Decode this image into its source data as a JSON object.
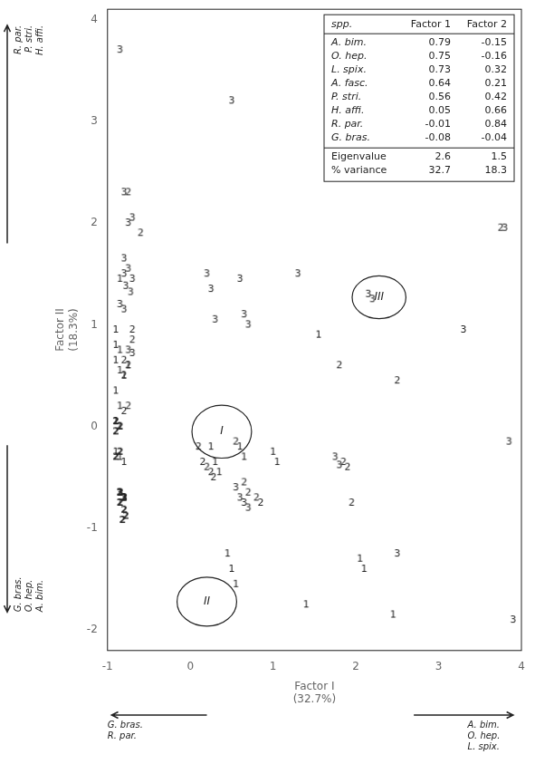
{
  "chart_data": {
    "type": "scatter",
    "xlabel": "Factor I\n(32.7%)",
    "ylabel": "Factor II\n(18.3%)",
    "xlim": [
      -1,
      4
    ],
    "ylim": [
      -2.2,
      4.1
    ],
    "xticks": [
      -1,
      0,
      1,
      2,
      3,
      4
    ],
    "yticks": [
      -2,
      -1,
      0,
      1,
      2,
      3,
      4
    ],
    "grid": false,
    "series": [
      {
        "name": "1",
        "marker": "text",
        "values": [
          [
            -0.85,
            1.45
          ],
          [
            -0.9,
            0.95
          ],
          [
            -0.9,
            0.8
          ],
          [
            -0.85,
            0.75
          ],
          [
            -0.9,
            0.65
          ],
          [
            -0.75,
            0.6
          ],
          [
            -0.85,
            0.55
          ],
          [
            -0.8,
            0.5
          ],
          [
            -0.9,
            0.35
          ],
          [
            -0.85,
            0.2
          ],
          [
            -0.9,
            0.05
          ],
          [
            -0.85,
            0.0
          ],
          [
            -0.9,
            -0.25
          ],
          [
            -0.85,
            -0.3
          ],
          [
            -0.8,
            -0.35
          ],
          [
            -0.85,
            -0.65
          ],
          [
            -0.8,
            -0.7
          ],
          [
            -0.85,
            -0.75
          ],
          [
            0.25,
            -0.2
          ],
          [
            0.3,
            -0.35
          ],
          [
            0.35,
            -0.45
          ],
          [
            0.6,
            -0.2
          ],
          [
            0.65,
            -0.3
          ],
          [
            1.0,
            -0.25
          ],
          [
            1.05,
            -0.35
          ],
          [
            1.55,
            0.9
          ],
          [
            0.45,
            -1.25
          ],
          [
            0.5,
            -1.4
          ],
          [
            0.55,
            -1.55
          ],
          [
            1.4,
            -1.75
          ],
          [
            2.05,
            -1.3
          ],
          [
            2.1,
            -1.4
          ],
          [
            2.45,
            -1.85
          ]
        ]
      },
      {
        "name": "2",
        "marker": "text",
        "values": [
          [
            -0.75,
            2.3
          ],
          [
            -0.6,
            1.9
          ],
          [
            -0.7,
            0.95
          ],
          [
            -0.7,
            0.85
          ],
          [
            -0.8,
            0.65
          ],
          [
            -0.75,
            0.6
          ],
          [
            -0.8,
            0.5
          ],
          [
            -0.75,
            0.2
          ],
          [
            -0.8,
            0.15
          ],
          [
            0.1,
            -0.2
          ],
          [
            0.15,
            -0.35
          ],
          [
            0.2,
            -0.4
          ],
          [
            0.25,
            -0.45
          ],
          [
            0.28,
            -0.5
          ],
          [
            0.55,
            -0.15
          ],
          [
            0.65,
            -0.55
          ],
          [
            0.7,
            -0.65
          ],
          [
            0.8,
            -0.7
          ],
          [
            0.85,
            -0.75
          ],
          [
            1.8,
            0.6
          ],
          [
            1.85,
            -0.35
          ],
          [
            1.9,
            -0.4
          ],
          [
            1.95,
            -0.75
          ],
          [
            2.5,
            0.45
          ],
          [
            3.75,
            1.95
          ]
        ]
      },
      {
        "name": "3",
        "marker": "text",
        "values": [
          [
            -0.85,
            3.7
          ],
          [
            -0.8,
            2.3
          ],
          [
            -0.7,
            2.05
          ],
          [
            -0.75,
            2.0
          ],
          [
            -0.8,
            1.65
          ],
          [
            -0.75,
            1.55
          ],
          [
            -0.8,
            1.5
          ],
          [
            -0.7,
            1.45
          ],
          [
            -0.78,
            1.38
          ],
          [
            -0.72,
            1.32
          ],
          [
            -0.85,
            1.2
          ],
          [
            -0.8,
            1.15
          ],
          [
            -0.75,
            0.75
          ],
          [
            -0.7,
            0.72
          ],
          [
            0.2,
            1.5
          ],
          [
            0.25,
            1.35
          ],
          [
            0.3,
            1.05
          ],
          [
            0.5,
            3.2
          ],
          [
            0.6,
            1.45
          ],
          [
            0.65,
            1.1
          ],
          [
            0.7,
            1.0
          ],
          [
            1.3,
            1.5
          ],
          [
            1.75,
            -0.3
          ],
          [
            1.8,
            -0.38
          ],
          [
            0.55,
            -0.6
          ],
          [
            0.6,
            -0.7
          ],
          [
            0.65,
            -0.75
          ],
          [
            0.7,
            -0.8
          ],
          [
            2.15,
            1.3
          ],
          [
            2.2,
            1.25
          ],
          [
            2.5,
            -1.25
          ],
          [
            3.3,
            0.95
          ],
          [
            3.8,
            1.95
          ],
          [
            3.85,
            -0.15
          ],
          [
            3.9,
            -1.9
          ]
        ]
      },
      {
        "name": "2",
        "marker": "bold_text",
        "values": [
          [
            -0.9,
            0.05
          ],
          [
            -0.85,
            0.0
          ],
          [
            -0.9,
            -0.05
          ],
          [
            -0.85,
            -0.25
          ],
          [
            -0.9,
            -0.3
          ],
          [
            -0.85,
            -0.65
          ],
          [
            -0.8,
            -0.7
          ],
          [
            -0.85,
            -0.75
          ],
          [
            -0.8,
            -0.82
          ],
          [
            -0.78,
            -0.88
          ],
          [
            -0.82,
            -0.92
          ]
        ]
      },
      {
        "name": "3",
        "marker": "bold_text",
        "values": [
          [
            -0.85,
            -0.65
          ],
          [
            -0.8,
            -0.7
          ]
        ]
      }
    ],
    "ellipses": [
      {
        "label": "I",
        "x": 0.38,
        "y": -0.05,
        "width": 0.72,
        "height": 0.52
      },
      {
        "label": "II",
        "x": 0.2,
        "y": -1.72,
        "width": 0.72,
        "height": 0.48
      },
      {
        "label": "III",
        "x": 2.28,
        "y": 1.27,
        "width": 0.65,
        "height": 0.42
      }
    ],
    "table": {
      "columns": [
        "spp.",
        "Factor 1",
        "Factor 2"
      ],
      "rows": [
        {
          "name": "A. bim.",
          "values": [
            0.79,
            -0.15
          ]
        },
        {
          "name": "O. hep.",
          "values": [
            0.75,
            -0.16
          ]
        },
        {
          "name": "L. spix.",
          "values": [
            0.73,
            0.32
          ]
        },
        {
          "name": "A. fasc.",
          "values": [
            0.64,
            0.21
          ]
        },
        {
          "name": "P. stri.",
          "values": [
            0.56,
            0.42
          ]
        },
        {
          "name": "H. affi.",
          "values": [
            0.05,
            0.66
          ]
        },
        {
          "name": "R. par.",
          "values": [
            -0.01,
            0.84
          ]
        },
        {
          "name": "G. bras.",
          "values": [
            -0.08,
            -0.04
          ]
        }
      ],
      "summary": [
        {
          "name": "Eigenvalue",
          "values": [
            2.6,
            1.5
          ]
        },
        {
          "name": "% variance",
          "values": [
            32.7,
            18.3
          ]
        }
      ]
    },
    "annotations": [
      {
        "direction": "up",
        "labels": [
          "R. par.",
          "P. stri.",
          "H. affi."
        ]
      },
      {
        "direction": "down",
        "labels": [
          "G. bras.",
          "O. hep.",
          "A. bim."
        ]
      },
      {
        "direction": "left",
        "labels": [
          "G. bras.",
          "R. par."
        ]
      },
      {
        "direction": "right",
        "labels": [
          "A. bim.",
          "O. hep.",
          "L. spix."
        ]
      }
    ]
  }
}
